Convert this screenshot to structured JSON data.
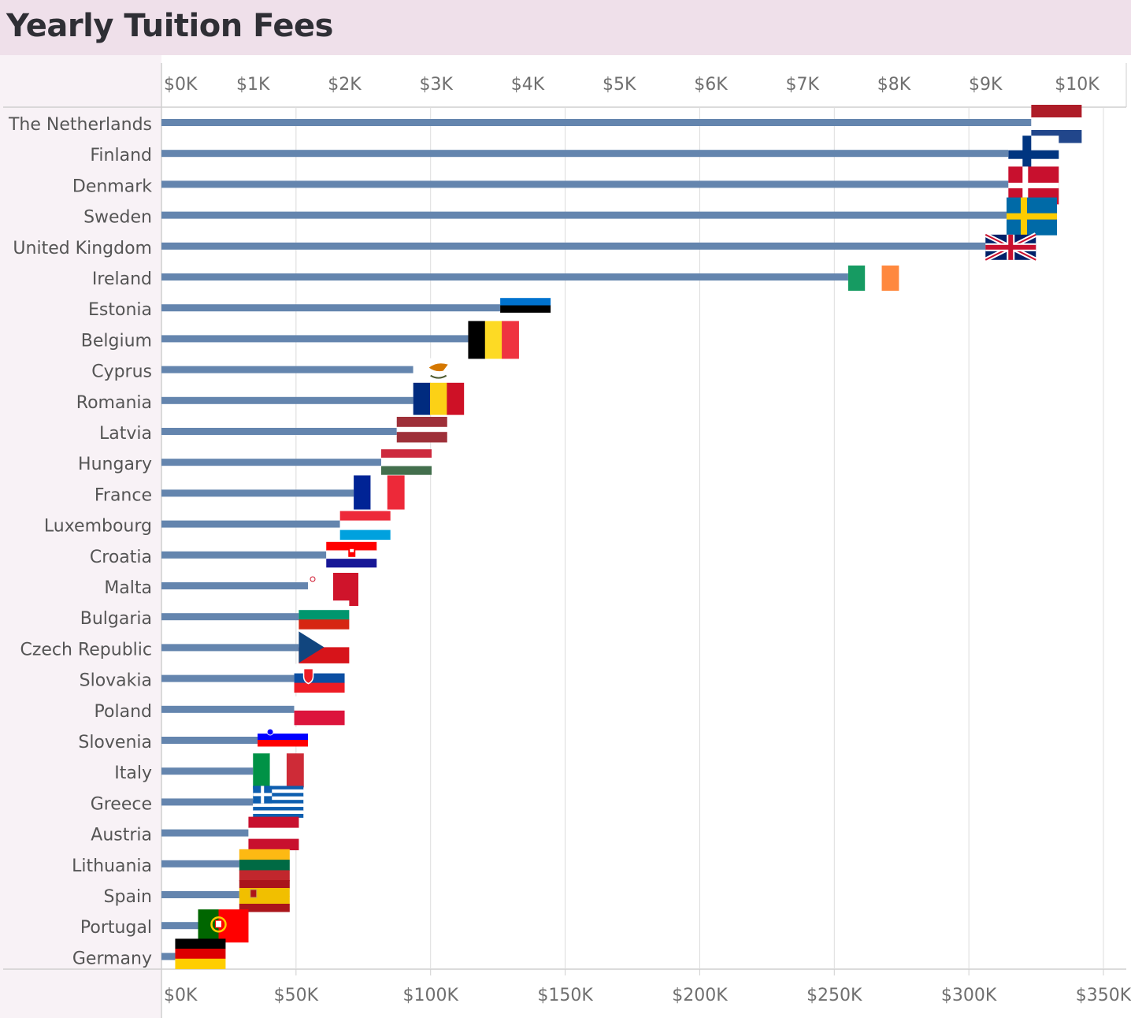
{
  "title": "Yearly Tuition Fees",
  "colors": {
    "bar": "#6485ae",
    "background": "#f8f2f6",
    "title_bg": "#efe0ea",
    "grid": "#dcdcdc"
  },
  "chart_data": {
    "type": "bar",
    "orientation": "horizontal",
    "title": "Yearly Tuition Fees",
    "x_axes": {
      "top": {
        "ticks": [
          "$0K",
          "$1K",
          "$2K",
          "$3K",
          "$4K",
          "$5K",
          "$6K",
          "$7K",
          "$8K",
          "$9K",
          "$10K"
        ],
        "range": [
          0,
          10000
        ]
      },
      "bottom": {
        "ticks": [
          "$0K",
          "$50K",
          "$100K",
          "$150K",
          "$200K",
          "$250K",
          "$300K",
          "$350K"
        ],
        "range": [
          0,
          350000
        ],
        "grid": true
      }
    },
    "categories": [
      "The Netherlands",
      "Finland",
      "Denmark",
      "Sweden",
      "United Kingdom",
      "Ireland",
      "Estonia",
      "Belgium",
      "Cyprus",
      "Romania",
      "Latvia",
      "Hungary",
      "France",
      "Luxembourg",
      "Croatia",
      "Malta",
      "Bulgaria",
      "Czech Republic",
      "Slovakia",
      "Poland",
      "Slovenia",
      "Italy",
      "Greece",
      "Austria",
      "Lithuania",
      "Spain",
      "Portugal",
      "Germany"
    ],
    "values": [
      9500,
      9250,
      9250,
      9230,
      9000,
      7500,
      3700,
      3350,
      2750,
      2750,
      2570,
      2400,
      2100,
      1950,
      1800,
      1600,
      1500,
      1500,
      1450,
      1450,
      1050,
      1000,
      1000,
      950,
      850,
      850,
      400,
      150
    ],
    "flags": [
      "flag-netherlands",
      "flag-finland",
      "flag-denmark",
      "flag-sweden",
      "flag-united-kingdom",
      "flag-ireland",
      "flag-estonia",
      "flag-belgium",
      "flag-cyprus",
      "flag-romania",
      "flag-latvia",
      "flag-hungary",
      "flag-france",
      "flag-luxembourg",
      "flag-croatia",
      "flag-malta",
      "flag-bulgaria",
      "flag-czech-republic",
      "flag-slovakia",
      "flag-poland",
      "flag-slovenia",
      "flag-italy",
      "flag-greece",
      "flag-austria",
      "flag-lithuania",
      "flag-spain",
      "flag-portugal",
      "flag-germany"
    ]
  }
}
